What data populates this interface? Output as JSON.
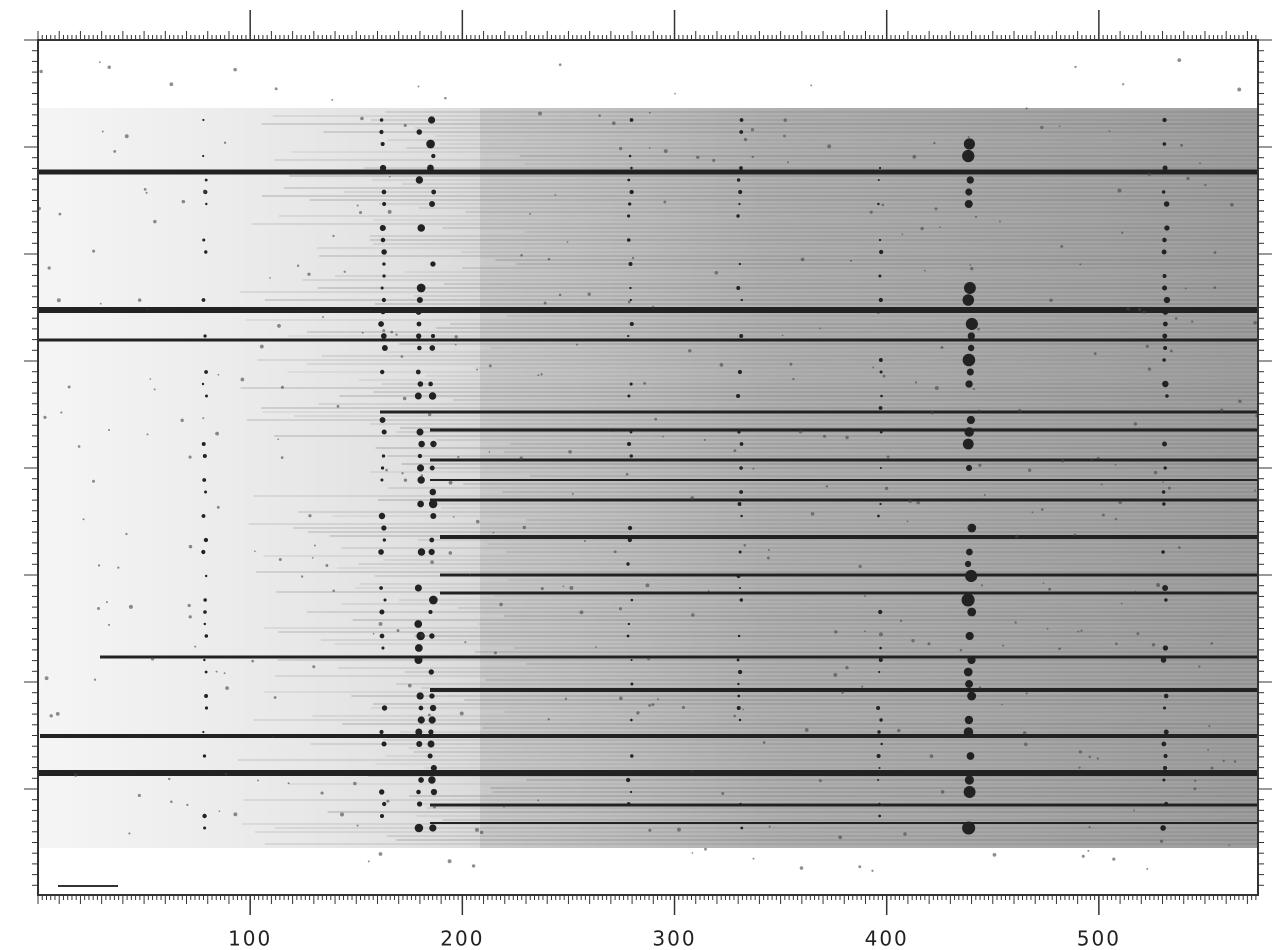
{
  "chart_data": {
    "type": "image",
    "xlim": [
      0,
      575
    ],
    "xticks": [
      100,
      200,
      300,
      400,
      500
    ]
  }
}
